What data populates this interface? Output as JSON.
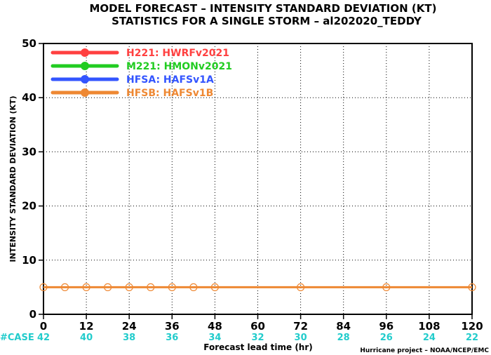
{
  "chart_data": {
    "type": "line",
    "title_line1": "MODEL FORECAST – INTENSITY STANDARD DEVIATION (KT)",
    "title_line2": "STATISTICS FOR A SINGLE STORM – al202020_TEDDY",
    "xlabel": "Forecast lead time (hr)",
    "ylabel": "INTENSITY STANDARD DEVIATION (KT)",
    "xlim": [
      0,
      120
    ],
    "ylim": [
      0,
      50
    ],
    "x_ticks": [
      0,
      12,
      24,
      36,
      48,
      60,
      72,
      84,
      96,
      108,
      120
    ],
    "y_ticks": [
      0,
      10,
      20,
      30,
      40,
      50
    ],
    "series": [
      {
        "name": "H221: HWRFv2021",
        "color": "#ff4040",
        "x": [],
        "y": []
      },
      {
        "name": "M221: HMONv2021",
        "color": "#22cc22",
        "x": [],
        "y": []
      },
      {
        "name": "HFSA: HAFSv1A",
        "color": "#3355ff",
        "x": [],
        "y": []
      },
      {
        "name": "HFSB: HAFSv1B",
        "color": "#ee8833",
        "x": [
          0,
          6,
          12,
          18,
          24,
          30,
          36,
          42,
          48,
          72,
          96,
          120
        ],
        "y": [
          5,
          5,
          5,
          5,
          5,
          5,
          5,
          5,
          5,
          5,
          5,
          5
        ]
      }
    ],
    "case_label": "#CASE",
    "case_color": "#22cccc",
    "cases": [
      {
        "x": 0,
        "n": "42"
      },
      {
        "x": 12,
        "n": "40"
      },
      {
        "x": 24,
        "n": "38"
      },
      {
        "x": 36,
        "n": "36"
      },
      {
        "x": 48,
        "n": "34"
      },
      {
        "x": 60,
        "n": "32"
      },
      {
        "x": 72,
        "n": "30"
      },
      {
        "x": 84,
        "n": "28"
      },
      {
        "x": 96,
        "n": "26"
      },
      {
        "x": 108,
        "n": "24"
      },
      {
        "x": 120,
        "n": "22"
      }
    ],
    "credit": "Hurricane project – NOAA/NCEP/EMC",
    "legend_position": "top-left"
  }
}
